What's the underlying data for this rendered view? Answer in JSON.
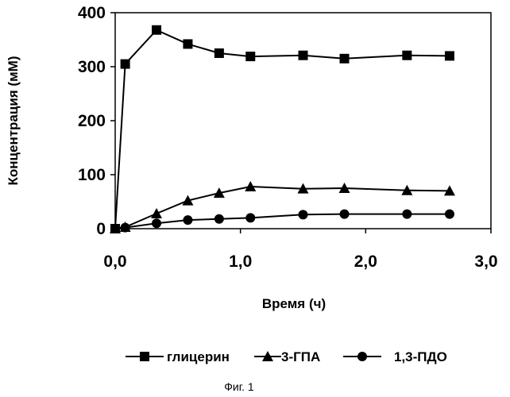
{
  "chart_data": {
    "type": "line",
    "xlabel": "Время (ч)",
    "ylabel": "Концентрация (мМ)",
    "xlim": [
      0,
      3
    ],
    "ylim": [
      0,
      400
    ],
    "x_ticks": [
      "0,0",
      "1,0",
      "2,0",
      "3,0"
    ],
    "y_ticks": [
      "0",
      "100",
      "200",
      "300",
      "400"
    ],
    "grid": false,
    "legend_position": "bottom",
    "series": [
      {
        "name": "глицерин",
        "marker": "square",
        "x": [
          0.0,
          0.08,
          0.33,
          0.58,
          0.83,
          1.08,
          1.5,
          1.83,
          2.33,
          2.67
        ],
        "y": [
          0,
          305,
          368,
          342,
          325,
          319,
          321,
          315,
          321,
          320
        ]
      },
      {
        "name": "3-ГПА",
        "marker": "triangle",
        "x": [
          0.0,
          0.08,
          0.33,
          0.58,
          0.83,
          1.08,
          1.5,
          1.83,
          2.33,
          2.67
        ],
        "y": [
          0,
          3,
          28,
          52,
          66,
          78,
          74,
          75,
          71,
          70
        ]
      },
      {
        "name": "1,3-ПДО",
        "marker": "circle",
        "x": [
          0.0,
          0.08,
          0.33,
          0.58,
          0.83,
          1.08,
          1.5,
          1.83,
          2.33,
          2.67
        ],
        "y": [
          0,
          2,
          10,
          16,
          18,
          20,
          26,
          27,
          27,
          27
        ]
      }
    ]
  },
  "caption": "Фиг. 1"
}
